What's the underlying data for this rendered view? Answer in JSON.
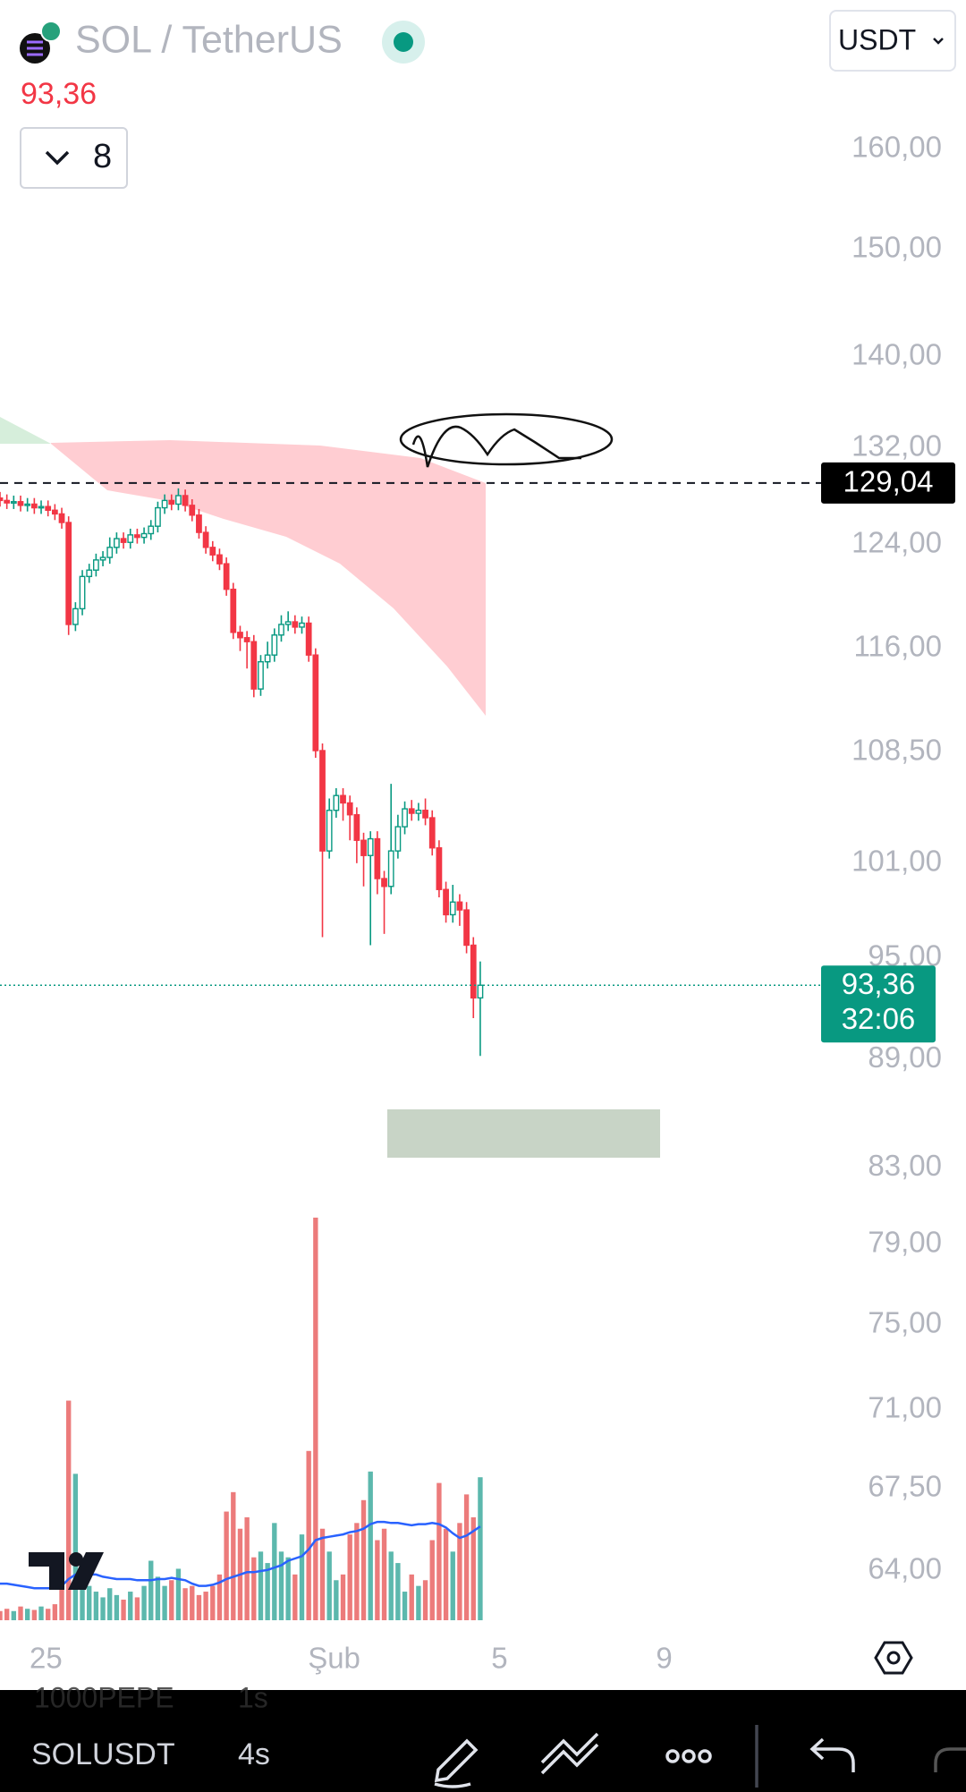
{
  "header": {
    "title": "SOL / TetherUS",
    "interval_count": "8",
    "currency": "USDT"
  },
  "chart_data": {
    "type": "candlestick",
    "open": [
      127.8,
      127.6,
      127.4,
      127.5,
      127.2,
      127.3,
      127.0,
      127.1,
      126.8,
      126.5,
      125.8,
      117.8,
      119.0,
      121.5,
      122.0,
      122.8,
      123.0,
      123.8,
      124.5,
      124.2,
      124.8,
      124.6,
      124.9,
      125.5,
      127.0,
      127.6,
      127.3,
      128.0,
      127.2,
      126.4,
      125.0,
      123.8,
      123.2,
      122.5,
      120.5,
      117.2,
      116.8,
      116.5,
      113.0,
      115.0,
      115.5,
      117.0,
      117.8,
      118.0,
      117.6,
      117.9,
      115.5,
      108.6,
      101.8,
      104.5,
      105.5,
      105.0,
      104.2,
      102.5,
      101.5,
      102.6,
      100.0,
      99.5,
      101.8,
      103.4,
      104.6,
      104.3,
      104.5,
      104.0,
      102.0,
      99.3,
      97.7,
      98.5,
      98.0,
      95.8,
      92.6
    ],
    "high": [
      128.3,
      128.1,
      128.0,
      128.0,
      127.8,
      127.8,
      127.6,
      127.6,
      127.3,
      127.0,
      126.3,
      119.5,
      122.0,
      122.5,
      123.3,
      123.5,
      124.6,
      125.0,
      125.0,
      125.3,
      125.3,
      125.4,
      126.0,
      127.5,
      128.1,
      128.1,
      128.6,
      128.5,
      127.7,
      126.9,
      125.5,
      124.3,
      123.7,
      123.0,
      121.0,
      117.7,
      117.3,
      117.0,
      115.5,
      116.5,
      117.5,
      118.5,
      118.8,
      118.5,
      118.4,
      118.4,
      116.0,
      109.1,
      105.3,
      106.0,
      106.0,
      105.5,
      104.7,
      103.0,
      103.1,
      103.1,
      100.5,
      106.3,
      104.2,
      105.1,
      105.2,
      105.0,
      105.3,
      104.5,
      102.5,
      99.8,
      99.6,
      99.0,
      98.5,
      96.3,
      94.8
    ],
    "low": [
      127.1,
      126.9,
      126.9,
      126.7,
      126.7,
      126.5,
      126.5,
      126.3,
      126.0,
      125.3,
      117.0,
      117.3,
      118.5,
      121.0,
      121.5,
      122.3,
      122.5,
      123.3,
      123.7,
      123.7,
      124.1,
      124.1,
      124.4,
      125.0,
      126.5,
      126.8,
      126.8,
      126.7,
      125.9,
      124.5,
      123.3,
      122.7,
      122.0,
      120.0,
      116.7,
      115.8,
      114.5,
      112.4,
      112.5,
      114.5,
      115.0,
      116.5,
      117.3,
      117.1,
      117.1,
      115.0,
      108.1,
      96.3,
      101.3,
      104.0,
      103.8,
      102.5,
      101.0,
      99.5,
      95.8,
      99.0,
      96.5,
      99.0,
      101.3,
      102.9,
      103.8,
      103.8,
      103.5,
      101.5,
      98.8,
      97.2,
      97.2,
      97.0,
      95.3,
      91.4,
      89.2
    ],
    "close": [
      127.6,
      127.4,
      127.5,
      127.2,
      127.3,
      127.0,
      127.1,
      126.8,
      126.5,
      125.8,
      117.8,
      119.0,
      121.5,
      122.0,
      122.8,
      123.0,
      123.8,
      124.5,
      124.2,
      124.8,
      124.6,
      124.9,
      125.5,
      127.0,
      127.6,
      127.3,
      128.0,
      127.2,
      126.4,
      125.0,
      123.8,
      123.2,
      122.5,
      120.5,
      117.2,
      116.8,
      116.5,
      113.0,
      115.0,
      115.5,
      117.0,
      117.8,
      118.0,
      117.6,
      117.9,
      115.5,
      108.6,
      101.8,
      104.5,
      105.5,
      105.0,
      104.2,
      102.5,
      101.5,
      102.6,
      100.0,
      99.5,
      101.8,
      103.4,
      104.6,
      104.3,
      104.5,
      104.0,
      102.0,
      99.3,
      97.7,
      98.5,
      98.0,
      95.8,
      92.6,
      93.36
    ],
    "volumes": [
      8,
      10,
      8,
      12,
      10,
      9,
      12,
      10,
      14,
      30,
      192,
      128,
      40,
      30,
      25,
      20,
      28,
      22,
      18,
      25,
      20,
      30,
      52,
      38,
      30,
      35,
      45,
      28,
      30,
      22,
      25,
      30,
      40,
      95,
      112,
      80,
      90,
      55,
      60,
      50,
      85,
      60,
      55,
      40,
      75,
      148,
      352,
      80,
      60,
      35,
      40,
      75,
      85,
      105,
      130,
      70,
      80,
      60,
      50,
      25,
      40,
      30,
      35,
      70,
      120,
      80,
      60,
      85,
      110,
      90,
      125
    ],
    "volume_ma": [
      32,
      32,
      31,
      30,
      29,
      28,
      28,
      28,
      28,
      30,
      36,
      40,
      41,
      40,
      40,
      38,
      37,
      36,
      36,
      36,
      35,
      35,
      35,
      36,
      36,
      37,
      36,
      35,
      32,
      30,
      30,
      31,
      33,
      36,
      38,
      40,
      42,
      42,
      43,
      44,
      46,
      48,
      52,
      54,
      56,
      62,
      70,
      72,
      73,
      74,
      75,
      77,
      78,
      80,
      84,
      86,
      86,
      85,
      85,
      84,
      83,
      84,
      84,
      85,
      84,
      81,
      76,
      72,
      74,
      78,
      82
    ],
    "ylim": [
      64,
      160
    ],
    "log_scale": true,
    "yticks": [
      {
        "value": 160,
        "label": "160,00"
      },
      {
        "value": 150,
        "label": "150,00"
      },
      {
        "value": 140,
        "label": "140,00"
      },
      {
        "value": 132,
        "label": "132,00"
      },
      {
        "value": 124,
        "label": "124,00"
      },
      {
        "value": 116,
        "label": "116,00"
      },
      {
        "value": 108.5,
        "label": "108,50"
      },
      {
        "value": 101,
        "label": "101,00"
      },
      {
        "value": 95,
        "label": "95,00"
      },
      {
        "value": 89,
        "label": "89,00"
      },
      {
        "value": 83,
        "label": "83,00"
      },
      {
        "value": 79,
        "label": "79,00"
      },
      {
        "value": 75,
        "label": "75,00"
      },
      {
        "value": 71,
        "label": "71,00"
      },
      {
        "value": 67.5,
        "label": "67,50"
      },
      {
        "value": 64,
        "label": "64,00"
      }
    ],
    "xlim": [
      0,
      140.8
    ],
    "xticks": [
      {
        "value": 6.7,
        "label": "25"
      },
      {
        "value": 48.7,
        "label": "Şub"
      },
      {
        "value": 72.8,
        "label": "5"
      },
      {
        "value": 96.8,
        "label": "9"
      }
    ],
    "up_color": "#089981",
    "down_color": "#f23645",
    "volume_up_color": "#5cb8ad",
    "volume_down_color": "#ec7b7b",
    "ma_color": "#2962ff",
    "price_line": {
      "value": 129.04,
      "label": "129,04"
    },
    "last_price": {
      "value": 93.36,
      "label": "93,36"
    },
    "countdown": "32:06"
  },
  "bottom_bar": {
    "symbol": "SOLUSDT",
    "interval": "4s",
    "hidden_symbol": "1000PEPE",
    "hidden_interval": "1s"
  }
}
